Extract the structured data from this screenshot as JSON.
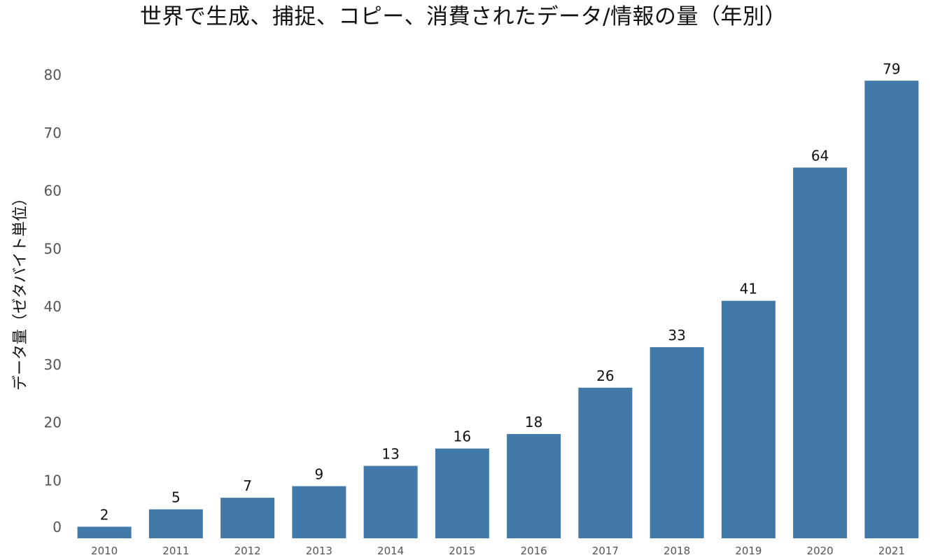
{
  "chart_data": {
    "type": "bar",
    "title": "世界で生成、捕捉、コピー、消費されたデータ/情報の量（年別）",
    "xlabel": "",
    "ylabel": "データ量（ゼタバイト単位）",
    "categories": [
      "2010",
      "2011",
      "2012",
      "2013",
      "2014",
      "2015",
      "2016",
      "2017",
      "2018",
      "2019",
      "2020",
      "2021"
    ],
    "values": [
      2,
      5,
      7,
      9,
      12.5,
      15.5,
      18,
      26,
      33,
      41,
      64,
      79
    ],
    "data_labels": [
      "2",
      "5",
      "7",
      "9",
      "13",
      "16",
      "18",
      "26",
      "33",
      "41",
      "64",
      "79"
    ],
    "ylim": [
      0,
      80
    ],
    "y_ticks": [
      0,
      10,
      20,
      30,
      40,
      50,
      60,
      70,
      80
    ],
    "grid": false,
    "legend": "none",
    "bar_color": "#4179a8"
  }
}
